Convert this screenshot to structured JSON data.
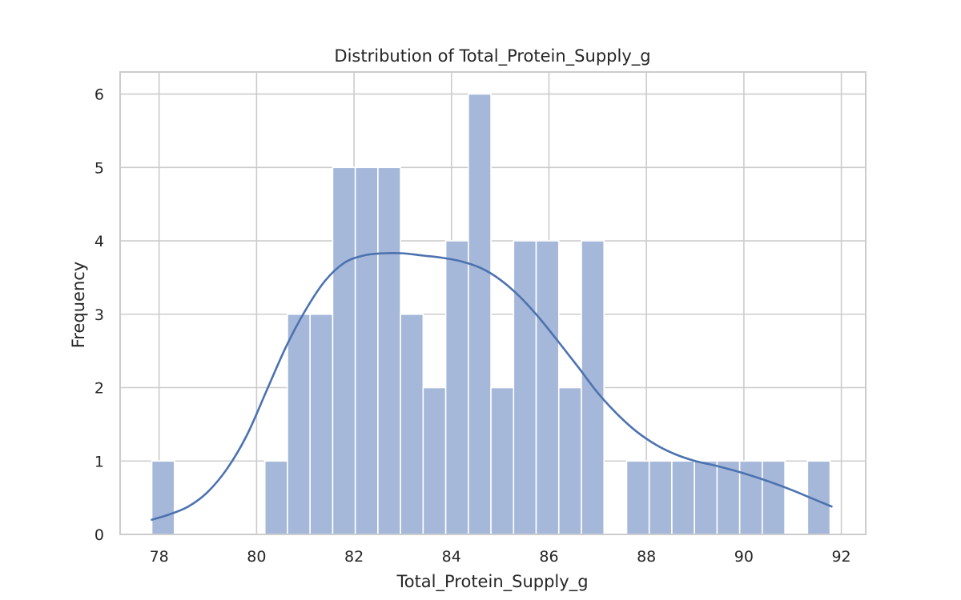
{
  "chart_data": {
    "type": "bar",
    "subtype": "histogram-with-kde",
    "title": "Distribution of Total_Protein_Supply_g",
    "xlabel": "Total_Protein_Supply_g",
    "ylabel": "Frequency",
    "xlim": [
      77.2,
      92.5
    ],
    "ylim": [
      0,
      6.3
    ],
    "xticks": [
      "78",
      "80",
      "82",
      "84",
      "86",
      "88",
      "90",
      "92"
    ],
    "yticks": [
      "0",
      "1",
      "2",
      "3",
      "4",
      "5",
      "6"
    ],
    "grid": true,
    "colors": {
      "bar": "#a5b8d9",
      "kde": "#4c72b0"
    },
    "bins": {
      "start": 77.85,
      "width": 0.464,
      "counts": [
        1,
        0,
        0,
        0,
        0,
        1,
        3,
        3,
        5,
        5,
        5,
        3,
        2,
        4,
        6,
        2,
        4,
        4,
        2,
        4,
        0,
        1,
        1,
        1,
        1,
        1,
        1,
        1,
        0,
        1
      ]
    },
    "kde": {
      "x": [
        77.85,
        78.2,
        78.6,
        79.0,
        79.4,
        79.8,
        80.2,
        80.6,
        81.0,
        81.4,
        81.8,
        82.2,
        82.6,
        83.0,
        83.4,
        83.8,
        84.2,
        84.6,
        85.0,
        85.4,
        85.8,
        86.2,
        86.6,
        87.0,
        87.4,
        87.8,
        88.2,
        88.6,
        89.0,
        89.4,
        89.8,
        90.2,
        90.6,
        91.0,
        91.4,
        91.8
      ],
      "y": [
        0.2,
        0.27,
        0.38,
        0.58,
        0.9,
        1.35,
        1.95,
        2.55,
        3.05,
        3.45,
        3.7,
        3.8,
        3.83,
        3.83,
        3.8,
        3.77,
        3.72,
        3.63,
        3.47,
        3.24,
        2.95,
        2.62,
        2.28,
        1.93,
        1.64,
        1.4,
        1.22,
        1.09,
        1.0,
        0.94,
        0.87,
        0.79,
        0.7,
        0.6,
        0.49,
        0.38
      ]
    }
  }
}
